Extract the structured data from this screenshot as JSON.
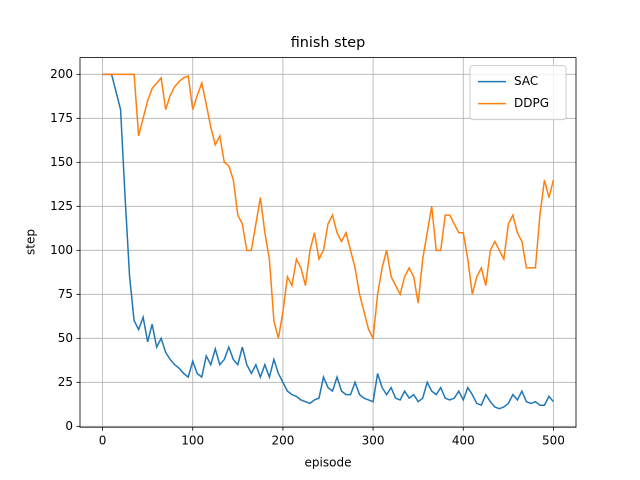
{
  "chart_data": {
    "type": "line",
    "title": "finish step",
    "x_label": "episode",
    "y_label": "step",
    "x": [
      0,
      5,
      10,
      15,
      20,
      25,
      30,
      35,
      40,
      45,
      50,
      55,
      60,
      65,
      70,
      75,
      80,
      85,
      90,
      95,
      100,
      105,
      110,
      115,
      120,
      125,
      130,
      135,
      140,
      145,
      150,
      155,
      160,
      165,
      170,
      175,
      180,
      185,
      190,
      195,
      200,
      205,
      210,
      215,
      220,
      225,
      230,
      235,
      240,
      245,
      250,
      255,
      260,
      265,
      270,
      275,
      280,
      285,
      290,
      295,
      300,
      305,
      310,
      315,
      320,
      325,
      330,
      335,
      340,
      345,
      350,
      355,
      360,
      365,
      370,
      375,
      380,
      385,
      390,
      395,
      400,
      405,
      410,
      415,
      420,
      425,
      430,
      435,
      440,
      445,
      450,
      455,
      460,
      465,
      470,
      475,
      480,
      485,
      490,
      495,
      500
    ],
    "series": [
      {
        "name": "SAC",
        "color": "#1f77b4",
        "values": [
          200,
          200,
          200,
          190,
          180,
          130,
          85,
          60,
          55,
          62,
          48,
          58,
          45,
          50,
          42,
          38,
          35,
          33,
          30,
          28,
          37,
          30,
          28,
          40,
          35,
          44,
          35,
          38,
          45,
          38,
          35,
          45,
          35,
          30,
          35,
          28,
          35,
          28,
          38,
          30,
          25,
          20,
          18,
          17,
          15,
          14,
          13,
          15,
          16,
          28,
          22,
          20,
          28,
          20,
          18,
          18,
          25,
          18,
          16,
          15,
          14,
          30,
          22,
          18,
          22,
          16,
          15,
          20,
          16,
          18,
          14,
          16,
          25,
          20,
          18,
          22,
          16,
          15,
          16,
          20,
          15,
          22,
          18,
          13,
          12,
          18,
          14,
          11,
          10,
          11,
          13,
          18,
          15,
          20,
          14,
          13,
          14,
          12,
          12,
          17,
          14
        ]
      },
      {
        "name": "DDPG",
        "color": "#ff7f0e",
        "values": [
          200,
          200,
          200,
          200,
          200,
          200,
          200,
          200,
          165,
          175,
          185,
          192,
          195,
          198,
          180,
          188,
          193,
          196,
          198,
          199,
          180,
          188,
          195,
          183,
          170,
          160,
          165,
          150,
          148,
          140,
          120,
          115,
          100,
          100,
          115,
          130,
          110,
          95,
          60,
          50,
          65,
          85,
          80,
          95,
          90,
          80,
          100,
          110,
          95,
          100,
          115,
          120,
          110,
          105,
          110,
          100,
          90,
          75,
          65,
          55,
          50,
          75,
          90,
          100,
          85,
          80,
          75,
          85,
          90,
          85,
          70,
          95,
          110,
          125,
          100,
          100,
          120,
          120,
          115,
          110,
          110,
          95,
          75,
          85,
          90,
          80,
          100,
          105,
          100,
          95,
          115,
          120,
          110,
          105,
          90,
          90,
          90,
          120,
          140,
          130,
          140
        ]
      }
    ],
    "xlim": [
      -25,
      525
    ],
    "ylim": [
      -0.5,
      209.5
    ],
    "xticks": [
      0,
      100,
      200,
      300,
      400,
      500
    ],
    "yticks": [
      0,
      25,
      50,
      75,
      100,
      125,
      150,
      175,
      200
    ],
    "grid": true,
    "legend": "upper right"
  }
}
